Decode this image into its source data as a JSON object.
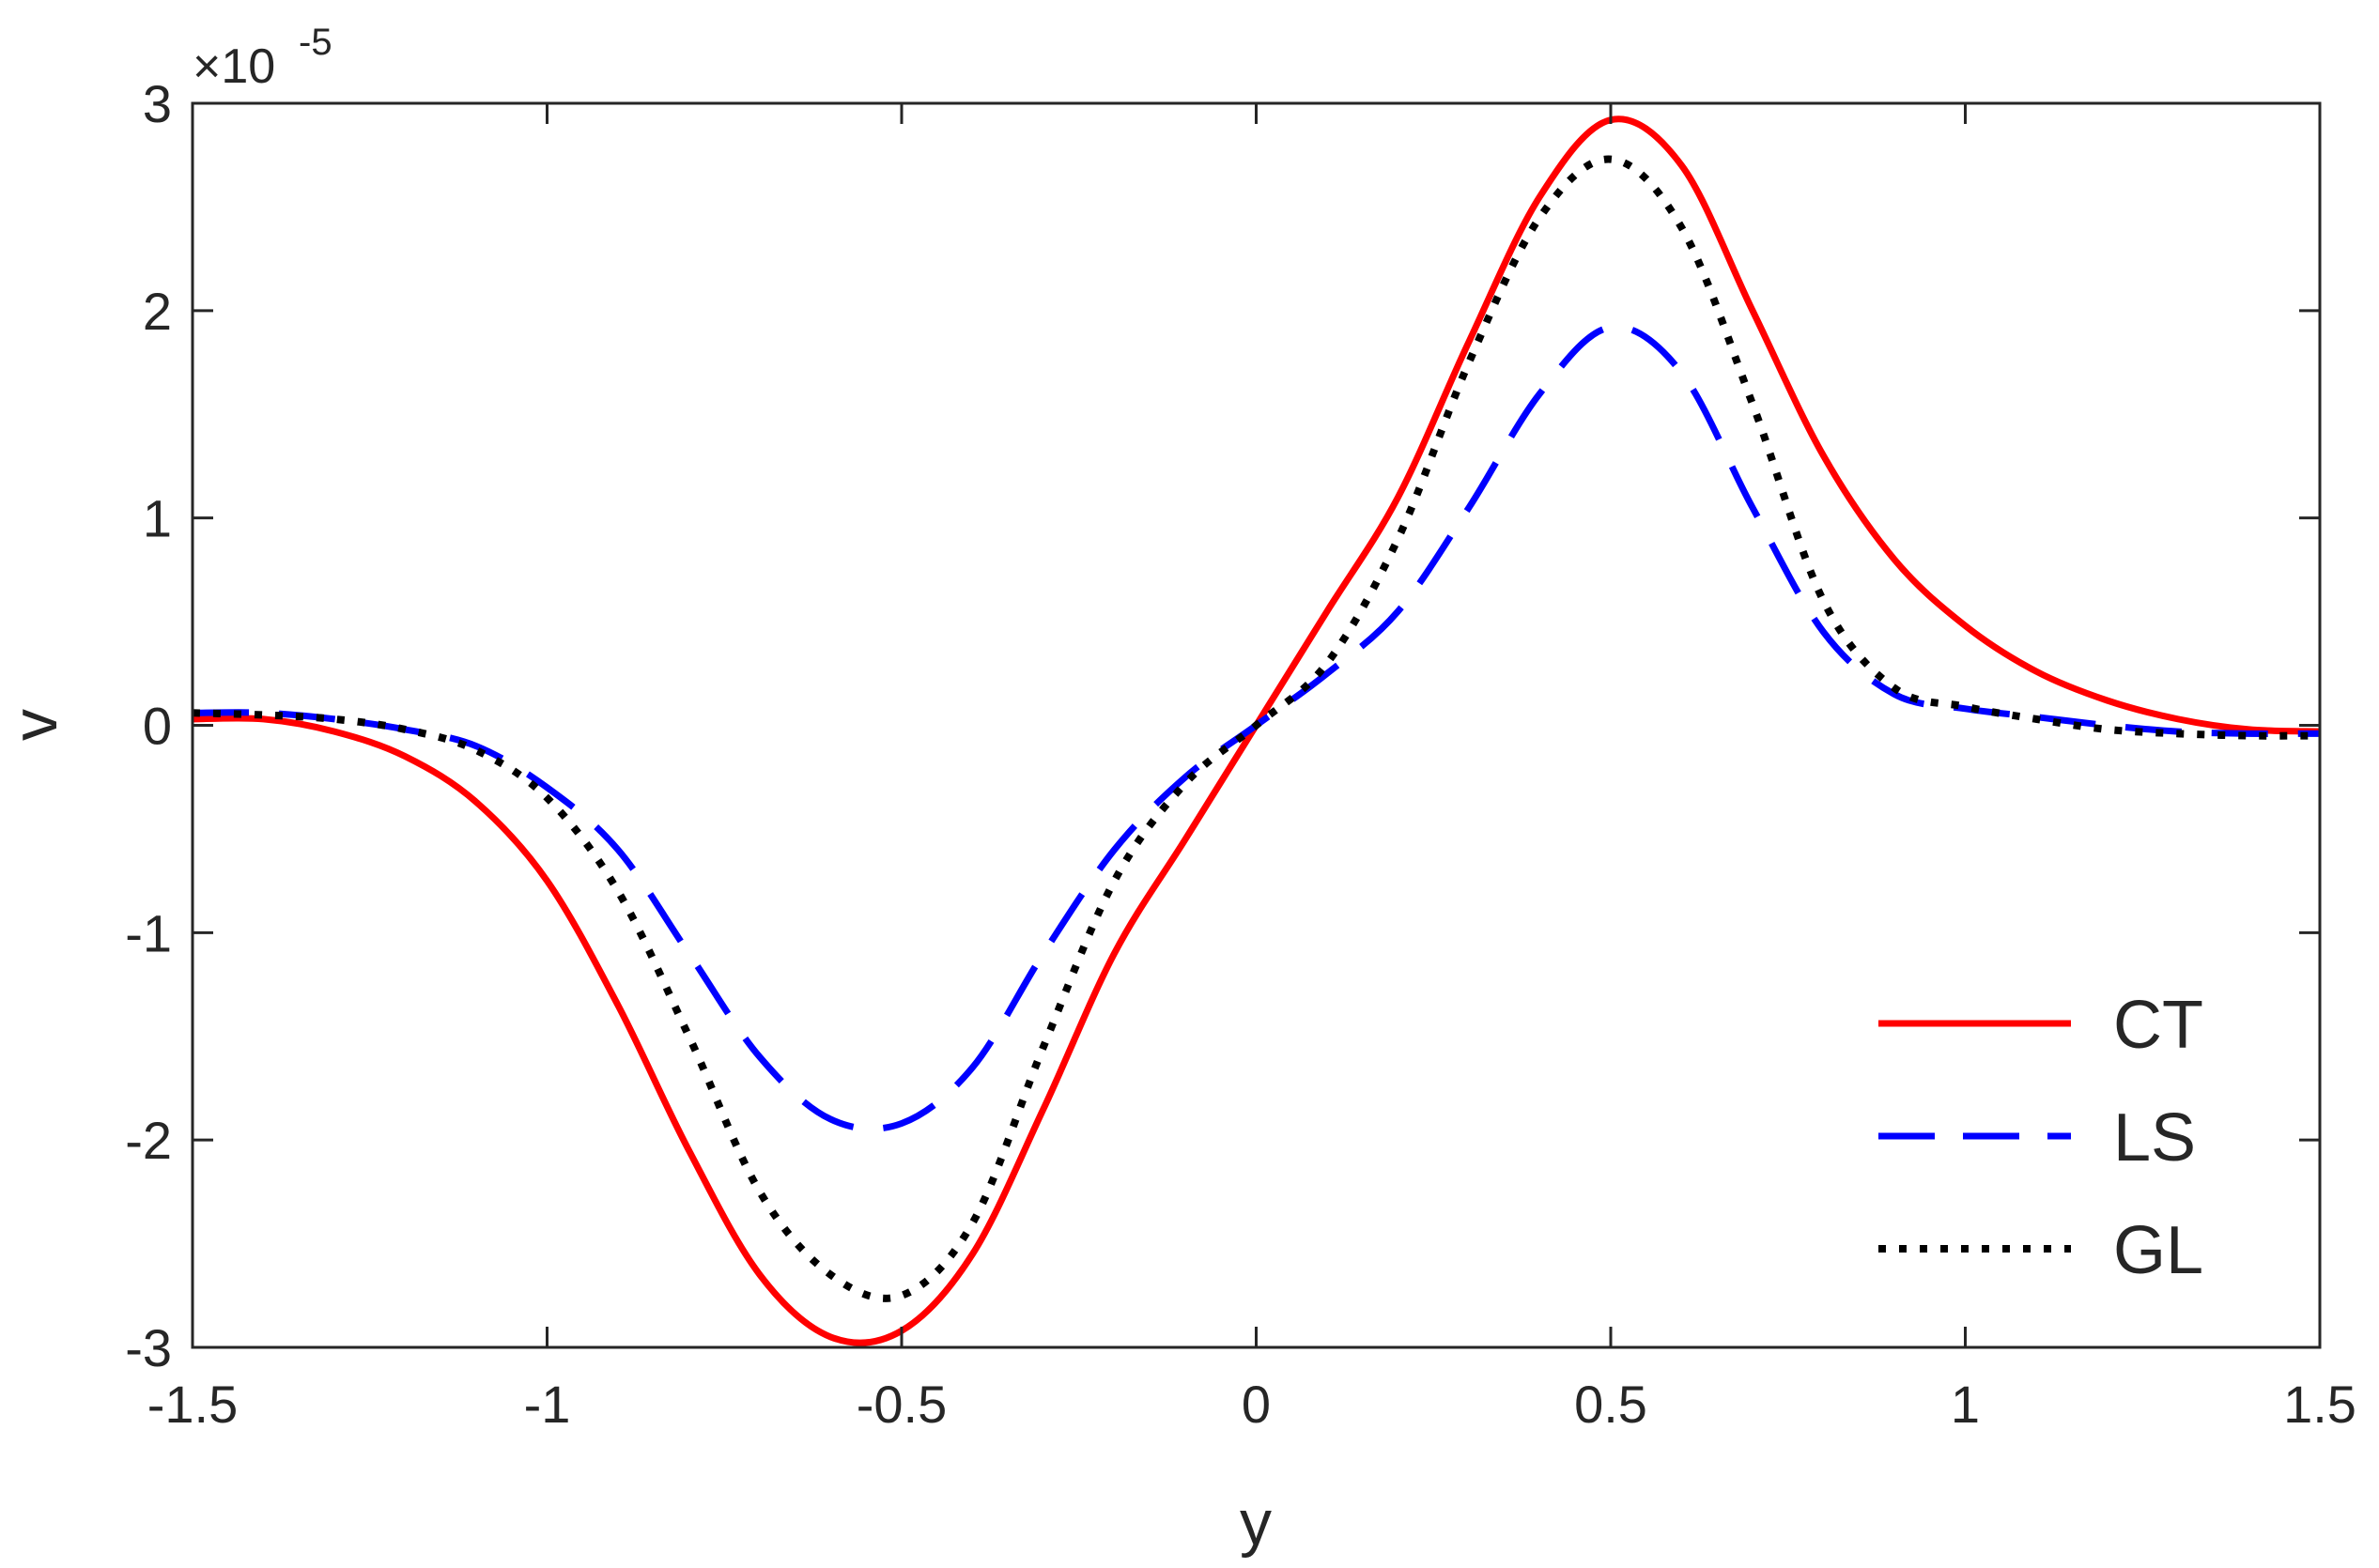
{
  "chart_data": {
    "type": "line",
    "xlabel": "y",
    "ylabel": "v",
    "y_multiplier": "×10",
    "y_multiplier_exp": "-5",
    "xlim": [
      -1.5,
      1.5
    ],
    "ylim": [
      -3,
      3
    ],
    "xticks": [
      -1.5,
      -1,
      -0.5,
      0,
      0.5,
      1,
      1.5
    ],
    "xtick_labels": [
      "-1.5",
      "-1",
      "-0.5",
      "0",
      "0.5",
      "1",
      "1.5"
    ],
    "yticks": [
      -3,
      -2,
      -1,
      0,
      1,
      2,
      3
    ],
    "ytick_labels": [
      "-3",
      "-2",
      "-1",
      "0",
      "1",
      "2",
      "3"
    ],
    "legend_position": "bottom-right",
    "grid": false,
    "series": [
      {
        "name": "CT",
        "color": "#ff0000",
        "style": "solid",
        "x": [
          -1.5,
          -1.4,
          -1.3,
          -1.2,
          -1.1,
          -1.0,
          -0.9,
          -0.8,
          -0.7,
          -0.6,
          -0.5,
          -0.4,
          -0.3,
          -0.2,
          -0.1,
          0.0,
          0.1,
          0.2,
          0.3,
          0.4,
          0.5,
          0.6,
          0.7,
          0.8,
          0.9,
          1.0,
          1.1,
          1.2,
          1.3,
          1.4,
          1.5
        ],
        "y": [
          0.03,
          0.03,
          -0.03,
          -0.15,
          -0.37,
          -0.75,
          -1.35,
          -2.05,
          -2.65,
          -2.95,
          -2.92,
          -2.55,
          -1.85,
          -1.1,
          -0.55,
          0.0,
          0.55,
          1.1,
          1.85,
          2.55,
          2.92,
          2.7,
          2.0,
          1.3,
          0.8,
          0.48,
          0.26,
          0.12,
          0.03,
          -0.02,
          -0.03
        ]
      },
      {
        "name": "LS",
        "color": "#0000ff",
        "style": "dashed",
        "x": [
          -1.5,
          -1.4,
          -1.3,
          -1.2,
          -1.1,
          -1.0,
          -0.9,
          -0.8,
          -0.7,
          -0.6,
          -0.5,
          -0.4,
          -0.3,
          -0.2,
          -0.1,
          0.0,
          0.1,
          0.2,
          0.3,
          0.4,
          0.5,
          0.6,
          0.7,
          0.8,
          0.9,
          1.0,
          1.1,
          1.2,
          1.3,
          1.4,
          1.5
        ],
        "y": [
          0.06,
          0.06,
          0.03,
          -0.02,
          -0.1,
          -0.3,
          -0.6,
          -1.1,
          -1.6,
          -1.9,
          -1.92,
          -1.65,
          -1.1,
          -0.6,
          -0.25,
          0.0,
          0.25,
          0.55,
          1.05,
          1.6,
          1.92,
          1.7,
          1.05,
          0.45,
          0.15,
          0.08,
          0.04,
          0.0,
          -0.03,
          -0.04,
          -0.04
        ]
      },
      {
        "name": "GL",
        "color": "#000000",
        "style": "dotted",
        "x": [
          -1.5,
          -1.4,
          -1.3,
          -1.2,
          -1.1,
          -1.0,
          -0.9,
          -0.8,
          -0.7,
          -0.6,
          -0.5,
          -0.4,
          -0.3,
          -0.2,
          -0.1,
          0.0,
          0.1,
          0.2,
          0.3,
          0.4,
          0.5,
          0.6,
          0.7,
          0.8,
          0.9,
          1.0,
          1.1,
          1.2,
          1.3,
          1.4,
          1.5
        ],
        "y": [
          0.06,
          0.05,
          0.03,
          -0.02,
          -0.12,
          -0.35,
          -0.8,
          -1.5,
          -2.25,
          -2.65,
          -2.75,
          -2.4,
          -1.55,
          -0.75,
          -0.28,
          0.0,
          0.3,
          0.9,
          1.75,
          2.45,
          2.73,
          2.4,
          1.55,
          0.6,
          0.18,
          0.09,
          0.03,
          -0.02,
          -0.04,
          -0.05,
          -0.05
        ]
      }
    ]
  }
}
